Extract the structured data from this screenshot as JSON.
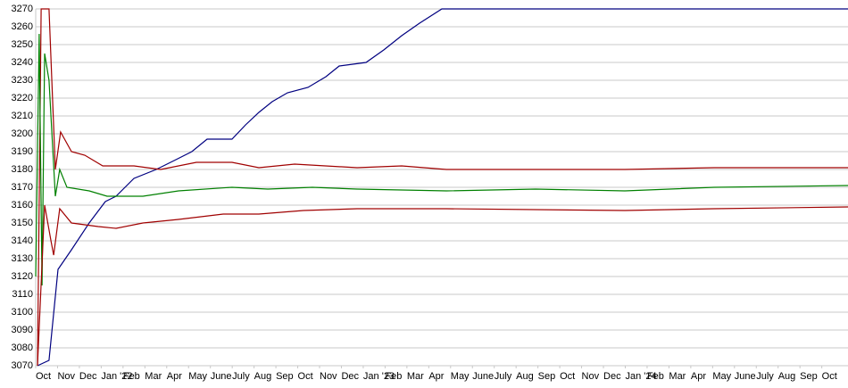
{
  "chart_data": {
    "type": "line",
    "xlim": [
      0,
      37.2
    ],
    "xticks": [
      {
        "value": 0,
        "label": "Oct"
      },
      {
        "value": 1,
        "label": "Nov"
      },
      {
        "value": 2,
        "label": "Dec"
      },
      {
        "value": 3,
        "label": "Jan '22"
      },
      {
        "value": 4,
        "label": "Feb"
      },
      {
        "value": 5,
        "label": "Mar"
      },
      {
        "value": 6,
        "label": "Apr"
      },
      {
        "value": 7,
        "label": "May"
      },
      {
        "value": 8,
        "label": "June"
      },
      {
        "value": 9,
        "label": "July"
      },
      {
        "value": 10,
        "label": "Aug"
      },
      {
        "value": 11,
        "label": "Sep"
      },
      {
        "value": 12,
        "label": "Oct"
      },
      {
        "value": 13,
        "label": "Nov"
      },
      {
        "value": 14,
        "label": "Dec"
      },
      {
        "value": 15,
        "label": "Jan '23"
      },
      {
        "value": 16,
        "label": "Feb"
      },
      {
        "value": 17,
        "label": "Mar"
      },
      {
        "value": 18,
        "label": "Apr"
      },
      {
        "value": 19,
        "label": "May"
      },
      {
        "value": 20,
        "label": "June"
      },
      {
        "value": 21,
        "label": "July"
      },
      {
        "value": 22,
        "label": "Aug"
      },
      {
        "value": 23,
        "label": "Sep"
      },
      {
        "value": 24,
        "label": "Oct"
      },
      {
        "value": 25,
        "label": "Nov"
      },
      {
        "value": 26,
        "label": "Dec"
      },
      {
        "value": 27,
        "label": "Jan '24"
      },
      {
        "value": 28,
        "label": "Feb"
      },
      {
        "value": 29,
        "label": "Mar"
      },
      {
        "value": 30,
        "label": "Apr"
      },
      {
        "value": 31,
        "label": "May"
      },
      {
        "value": 32,
        "label": "June"
      },
      {
        "value": 33,
        "label": "July"
      },
      {
        "value": 34,
        "label": "Aug"
      },
      {
        "value": 35,
        "label": "Sep"
      },
      {
        "value": 36,
        "label": "Oct"
      }
    ],
    "ylim": [
      3070,
      3270
    ],
    "yticks": [
      3070,
      3080,
      3090,
      3100,
      3110,
      3120,
      3130,
      3140,
      3150,
      3160,
      3170,
      3180,
      3190,
      3200,
      3210,
      3220,
      3230,
      3240,
      3250,
      3260,
      3270
    ],
    "grid": true,
    "series": [
      {
        "color": "#000080",
        "x": [
          0.08,
          0.61,
          1.02,
          1.64,
          2.45,
          3.19,
          3.68,
          4.5,
          5.52,
          6.34,
          7.15,
          7.85,
          8.99,
          9.61,
          10.22,
          10.83,
          11.53,
          12.47,
          13.29,
          13.9,
          15.13,
          15.94,
          16.76,
          17.58,
          18.6,
          37.2
        ],
        "values": [
          3070,
          3073,
          3124,
          3135,
          3150,
          3162,
          3165,
          3175,
          3180,
          3185,
          3190,
          3197,
          3197,
          3205,
          3212,
          3218,
          3223,
          3226,
          3232,
          3238,
          3240,
          3247,
          3255,
          3262,
          3270,
          3270
        ]
      },
      {
        "color": "#a00000",
        "x": [
          0.08,
          0.25,
          0.61,
          0.9,
          1.14,
          1.64,
          2.25,
          3.07,
          4.5,
          5.72,
          7.36,
          8.99,
          10.22,
          11.86,
          14.72,
          16.76,
          18.81,
          26.98,
          31.07,
          37.2
        ],
        "values": [
          3070,
          3270,
          3270,
          3180,
          3201,
          3190,
          3188,
          3182,
          3182,
          3180,
          3184,
          3184,
          3181,
          3183,
          3181,
          3182,
          3180,
          3180,
          3181,
          3181
        ]
      },
      {
        "color": "#008000",
        "x": [
          0,
          0.16,
          0.29,
          0.41,
          0.61,
          0.9,
          1.1,
          1.43,
          2.45,
          3.27,
          4.91,
          6.54,
          8.99,
          10.63,
          12.67,
          14.72,
          18.81,
          22.89,
          26.98,
          31.07,
          37.2
        ],
        "values": [
          3120,
          3256,
          3115,
          3245,
          3230,
          3165,
          3180,
          3170,
          3168,
          3165,
          3165,
          3168,
          3170,
          3169,
          3170,
          3169,
          3168,
          3169,
          3168,
          3170,
          3171
        ]
      },
      {
        "color": "#a00000",
        "x": [
          0.08,
          0.41,
          0.7,
          0.82,
          1.1,
          1.64,
          2.86,
          3.68,
          4.91,
          6.54,
          8.59,
          10.22,
          12.26,
          14.72,
          18.81,
          26.98,
          31.07,
          37.2
        ],
        "values": [
          3070,
          3160,
          3140,
          3132,
          3158,
          3150,
          3148,
          3147,
          3150,
          3152,
          3155,
          3155,
          3157,
          3158,
          3158,
          3157,
          3158,
          3159
        ]
      }
    ]
  }
}
